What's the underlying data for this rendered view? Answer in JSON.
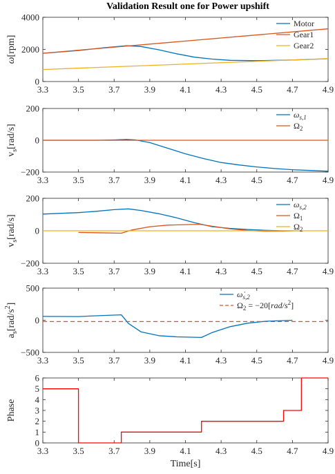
{
  "figure_title": "Validation Result one for Power upshift",
  "colors": {
    "blue": "#0072BD",
    "orange": "#D95319",
    "yellow": "#EDB120",
    "red": "#FF0000"
  },
  "chart_data": [
    {
      "type": "line",
      "ylabel": "ω[rpm]",
      "xlim": [
        3.3,
        4.9
      ],
      "ylim": [
        0,
        4000
      ],
      "x_ticks": [
        "3.3",
        "3.5",
        "3.7",
        "3.9",
        "4.1",
        "4.3",
        "4.5",
        "4.7",
        "4.9"
      ],
      "y_ticks": [
        "0",
        "2000",
        "4000"
      ],
      "legend_position": "top-right",
      "series": [
        {
          "name": "Motor",
          "color_key": "blue",
          "dash": "solid",
          "x": [
            3.3,
            3.5,
            3.65,
            3.77,
            3.85,
            3.95,
            4.05,
            4.15,
            4.25,
            4.35,
            4.5,
            4.7,
            4.9
          ],
          "y": [
            1760,
            1930,
            2110,
            2230,
            2180,
            1980,
            1730,
            1520,
            1400,
            1320,
            1300,
            1340,
            1420
          ]
        },
        {
          "name": "Gear1",
          "color_key": "orange",
          "dash": "solid",
          "x": [
            3.3,
            4.9
          ],
          "y": [
            1760,
            3280
          ]
        },
        {
          "name": "Gear2",
          "color_key": "yellow",
          "dash": "solid",
          "x": [
            3.3,
            4.9
          ],
          "y": [
            750,
            1430
          ]
        }
      ]
    },
    {
      "type": "line",
      "ylabel": "v_s[rad/s]",
      "xlim": [
        3.3,
        4.9
      ],
      "ylim": [
        -200,
        200
      ],
      "x_ticks": [
        "3.3",
        "3.5",
        "3.7",
        "3.9",
        "4.1",
        "4.3",
        "4.5",
        "4.7",
        "4.9"
      ],
      "y_ticks": [
        "-200",
        "0",
        "200"
      ],
      "legend_position": "top-right",
      "series": [
        {
          "name": "ω_s,1",
          "name_base": "ω",
          "name_sub": "s,1",
          "color_key": "blue",
          "dash": "solid",
          "x": [
            3.3,
            3.6,
            3.7,
            3.77,
            3.82,
            3.9,
            4.0,
            4.1,
            4.2,
            4.3,
            4.4,
            4.5,
            4.6,
            4.7,
            4.8,
            4.9
          ],
          "y": [
            0,
            0,
            2,
            5,
            2,
            -15,
            -50,
            -85,
            -115,
            -140,
            -155,
            -168,
            -178,
            -185,
            -190,
            -195
          ]
        },
        {
          "name": "Ω_2",
          "name_base": "Ω",
          "name_sub": "2",
          "color_key": "orange",
          "dash": "solid",
          "x": [
            3.3,
            4.9
          ],
          "y": [
            0,
            0
          ]
        }
      ]
    },
    {
      "type": "line",
      "ylabel": "v_s[rad/s]",
      "xlim": [
        3.3,
        4.9
      ],
      "ylim": [
        -200,
        200
      ],
      "x_ticks": [
        "3.3",
        "3.5",
        "3.7",
        "3.9",
        "4.1",
        "4.3",
        "4.5",
        "4.7",
        "4.9"
      ],
      "y_ticks": [
        "-200",
        "0",
        "200"
      ],
      "legend_position": "top-right",
      "series": [
        {
          "name": "ω_s,2",
          "name_base": "ω",
          "name_sub": "s,2",
          "color_key": "blue",
          "dash": "solid",
          "x": [
            3.3,
            3.5,
            3.6,
            3.7,
            3.78,
            3.85,
            3.95,
            4.05,
            4.15,
            4.25,
            4.35,
            4.45,
            4.55,
            4.65,
            4.75
          ],
          "y": [
            103,
            112,
            120,
            130,
            135,
            125,
            105,
            80,
            50,
            25,
            15,
            8,
            3,
            0,
            0
          ]
        },
        {
          "name": "Ω_1",
          "name_base": "Ω",
          "name_sub": "1",
          "color_key": "orange",
          "dash": "solid",
          "x": [
            3.5,
            3.6,
            3.74,
            3.8,
            3.9,
            4.0,
            4.1,
            4.18,
            4.25,
            4.35,
            4.45,
            4.55,
            4.65,
            4.7
          ],
          "y": [
            -10,
            -12,
            -15,
            5,
            25,
            35,
            38,
            40,
            28,
            12,
            2,
            -3,
            -2,
            0
          ]
        },
        {
          "name": "Ω_2",
          "name_base": "Ω",
          "name_sub": "2",
          "color_key": "yellow",
          "dash": "solid",
          "x": [
            3.3,
            4.9
          ],
          "y": [
            0,
            0
          ]
        }
      ]
    },
    {
      "type": "line",
      "ylabel": "a_s[rad/s^2]",
      "xlim": [
        3.3,
        4.9
      ],
      "ylim": [
        -500,
        500
      ],
      "x_ticks": [
        "3.3",
        "3.5",
        "3.7",
        "3.9",
        "4.1",
        "4.3",
        "4.5",
        "4.7",
        "4.9"
      ],
      "y_ticks": [
        "-500",
        "0",
        "500"
      ],
      "legend_position": "top-right",
      "series": [
        {
          "name": "ω̇_s,2",
          "name_base": "ω̇",
          "name_sub": "s,2",
          "color_key": "blue",
          "dash": "solid",
          "x": [
            3.3,
            3.5,
            3.6,
            3.74,
            3.78,
            3.85,
            3.95,
            4.05,
            4.15,
            4.19,
            4.25,
            4.35,
            4.45,
            4.55,
            4.65,
            4.7
          ],
          "y": [
            60,
            58,
            70,
            85,
            -50,
            -180,
            -240,
            -258,
            -265,
            -268,
            -190,
            -100,
            -45,
            -15,
            -5,
            0
          ]
        },
        {
          "name": "Ω_2 = −20[rad/s^2]",
          "name_base": "Ω",
          "name_sub": "2",
          "name_rest": " = −20[",
          "name_rest_italic": "rad/s",
          "name_sup": "2",
          "name_end": "]",
          "color_key": "orange",
          "dash": "dashed",
          "x": [
            3.3,
            4.9
          ],
          "y": [
            -20,
            -20
          ]
        }
      ]
    },
    {
      "type": "line",
      "ylabel": "Phase",
      "xlabel": "Time[s]",
      "xlim": [
        3.3,
        4.9
      ],
      "ylim": [
        0,
        6
      ],
      "x_ticks": [
        "3.3",
        "3.5",
        "3.7",
        "3.9",
        "4.1",
        "4.3",
        "4.5",
        "4.7",
        "4.9"
      ],
      "y_ticks": [
        "0",
        "1",
        "2",
        "3",
        "4",
        "5",
        "6"
      ],
      "series": [
        {
          "name": "",
          "color_key": "red",
          "dash": "solid",
          "step": true,
          "x": [
            3.3,
            3.5,
            3.5,
            3.74,
            3.74,
            4.19,
            4.19,
            4.65,
            4.65,
            4.75,
            4.75,
            4.9
          ],
          "y": [
            5,
            5,
            0,
            0,
            1,
            1,
            2,
            2,
            3,
            3,
            6,
            6
          ]
        }
      ]
    }
  ]
}
